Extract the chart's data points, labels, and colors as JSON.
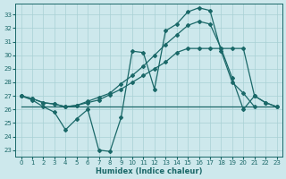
{
  "xlabel": "Humidex (Indice chaleur)",
  "xlim": [
    -0.5,
    23.5
  ],
  "ylim": [
    22.5,
    33.8
  ],
  "yticks": [
    23,
    24,
    25,
    26,
    27,
    28,
    29,
    30,
    31,
    32,
    33
  ],
  "xticks": [
    0,
    1,
    2,
    3,
    4,
    5,
    6,
    7,
    8,
    9,
    10,
    11,
    12,
    13,
    14,
    15,
    16,
    17,
    18,
    19,
    20,
    21,
    22,
    23
  ],
  "bg_color": "#cde8ec",
  "line_color": "#1a6868",
  "grid_color": "#a8d0d4",
  "series1_x": [
    0,
    1,
    2,
    3,
    4,
    5,
    6,
    7,
    8,
    9,
    10,
    11,
    12,
    13,
    14,
    15,
    16,
    17,
    18,
    19,
    20,
    21
  ],
  "series1_y": [
    27.0,
    26.7,
    26.2,
    25.8,
    24.5,
    25.3,
    26.0,
    23.0,
    22.9,
    25.4,
    30.3,
    30.2,
    27.5,
    31.8,
    32.3,
    33.2,
    33.5,
    33.3,
    30.3,
    28.0,
    27.2,
    26.2
  ],
  "series2_x": [
    0,
    1,
    2,
    3,
    4,
    5,
    6,
    7,
    8,
    9,
    10,
    11,
    12,
    13,
    14,
    15,
    16,
    17,
    18,
    19,
    20,
    21,
    22,
    23
  ],
  "series2_y": [
    26.2,
    26.2,
    26.2,
    26.2,
    26.2,
    26.2,
    26.2,
    26.2,
    26.2,
    26.2,
    26.2,
    26.2,
    26.2,
    26.2,
    26.2,
    26.2,
    26.2,
    26.2,
    26.2,
    26.2,
    26.2,
    26.2,
    26.2,
    26.2
  ],
  "series3_x": [
    0,
    1,
    2,
    3,
    4,
    5,
    6,
    7,
    8,
    9,
    10,
    11,
    12,
    13,
    14,
    15,
    16,
    17,
    18,
    19,
    20,
    21,
    22,
    23
  ],
  "series3_y": [
    27.0,
    26.8,
    26.5,
    26.4,
    26.2,
    26.3,
    26.5,
    26.7,
    27.1,
    27.5,
    28.0,
    28.5,
    29.0,
    29.5,
    30.2,
    30.5,
    30.5,
    30.5,
    30.5,
    30.5,
    30.5,
    27.0,
    26.5,
    26.2
  ],
  "series4_x": [
    0,
    1,
    2,
    3,
    4,
    5,
    6,
    7,
    8,
    9,
    10,
    11,
    12,
    13,
    14,
    15,
    16,
    17,
    18,
    19,
    20,
    21,
    22,
    23
  ],
  "series4_y": [
    27.0,
    26.8,
    26.5,
    26.4,
    26.2,
    26.3,
    26.6,
    26.9,
    27.2,
    27.9,
    28.5,
    29.2,
    30.0,
    30.8,
    31.5,
    32.2,
    32.5,
    32.3,
    30.5,
    28.3,
    26.0,
    27.0,
    26.5,
    26.2
  ]
}
